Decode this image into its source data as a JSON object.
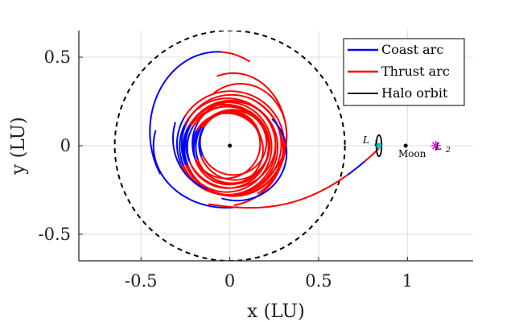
{
  "chart_data": {
    "type": "line",
    "title": "",
    "xlabel": "x (LU)",
    "ylabel": "y (LU)",
    "xlim": [
      -0.85,
      1.37
    ],
    "ylim": [
      -0.65,
      0.65
    ],
    "xticks": [
      -0.5,
      0,
      0.5,
      1
    ],
    "yticks": [
      -0.5,
      0,
      0.5
    ],
    "x_tick_labels": [
      "-0.5",
      "0",
      "0.5",
      "1"
    ],
    "y_tick_labels": [
      "-0.5",
      "0",
      "0.5"
    ],
    "grid": true,
    "legend_position": "top-right",
    "series": [
      {
        "name": "Coast arc",
        "color": "#0000ff",
        "style": "solid",
        "description_points": [
          {
            "x": -0.44,
            "y": 0.07
          },
          {
            "x": -0.42,
            "y": 0.28
          },
          {
            "x": -0.3,
            "y": 0.46
          },
          {
            "x": -0.08,
            "y": 0.53
          },
          {
            "x": 0.0,
            "y": 0.52
          },
          {
            "x": -0.45,
            "y": -0.02
          },
          {
            "x": -0.3,
            "y": -0.3
          },
          {
            "x": -0.22,
            "y": -0.33
          },
          {
            "x": 0.22,
            "y": -0.05
          },
          {
            "x": 0.68,
            "y": -0.15
          },
          {
            "x": 0.78,
            "y": -0.1
          }
        ]
      },
      {
        "name": "Thrust arc",
        "color": "#ff0000",
        "style": "solid",
        "description_points": [
          {
            "x": 0.0,
            "y": 0.52
          },
          {
            "x": 0.22,
            "y": 0.34
          },
          {
            "x": 0.33,
            "y": -0.01
          },
          {
            "x": 0.08,
            "y": -0.32
          },
          {
            "x": -0.2,
            "y": -0.32
          },
          {
            "x": -0.42,
            "y": 0.05
          },
          {
            "x": 0.0,
            "y": -0.36
          },
          {
            "x": 0.3,
            "y": -0.31
          },
          {
            "x": 0.55,
            "y": -0.22
          },
          {
            "x": 0.77,
            "y": -0.1
          },
          {
            "x": 0.82,
            "y": -0.06
          }
        ]
      },
      {
        "name": "Halo orbit",
        "color": "#000000",
        "style": "solid",
        "center": {
          "x": 0.84,
          "y": 0.0
        },
        "semi_axes": {
          "x": 0.015,
          "y": 0.06
        }
      }
    ],
    "extra_curves": [
      {
        "kind": "circle",
        "center": {
          "x": 0.0,
          "y": 0.0
        },
        "radius": 0.648,
        "color": "#000000",
        "style": "dashed"
      }
    ],
    "markers": [
      {
        "label": "Earth",
        "x": 0.0,
        "y": 0.0,
        "color": "#000000",
        "symbol": "dot"
      },
      {
        "label": "Moon",
        "x": 0.99,
        "y": 0.0,
        "color": "#000000",
        "symbol": "dot"
      },
      {
        "label": "L1",
        "x": 0.84,
        "y": 0.0,
        "color": "#00c8c8",
        "symbol": "dot"
      },
      {
        "label": "L2",
        "x": 1.16,
        "y": 0.0,
        "color": "#ff00ff",
        "symbol": "star"
      }
    ],
    "annotations": {
      "L1_main": "L",
      "L1_sub": "1",
      "L2_main": "L",
      "L2_sub": "2",
      "moon": "Moon"
    }
  }
}
